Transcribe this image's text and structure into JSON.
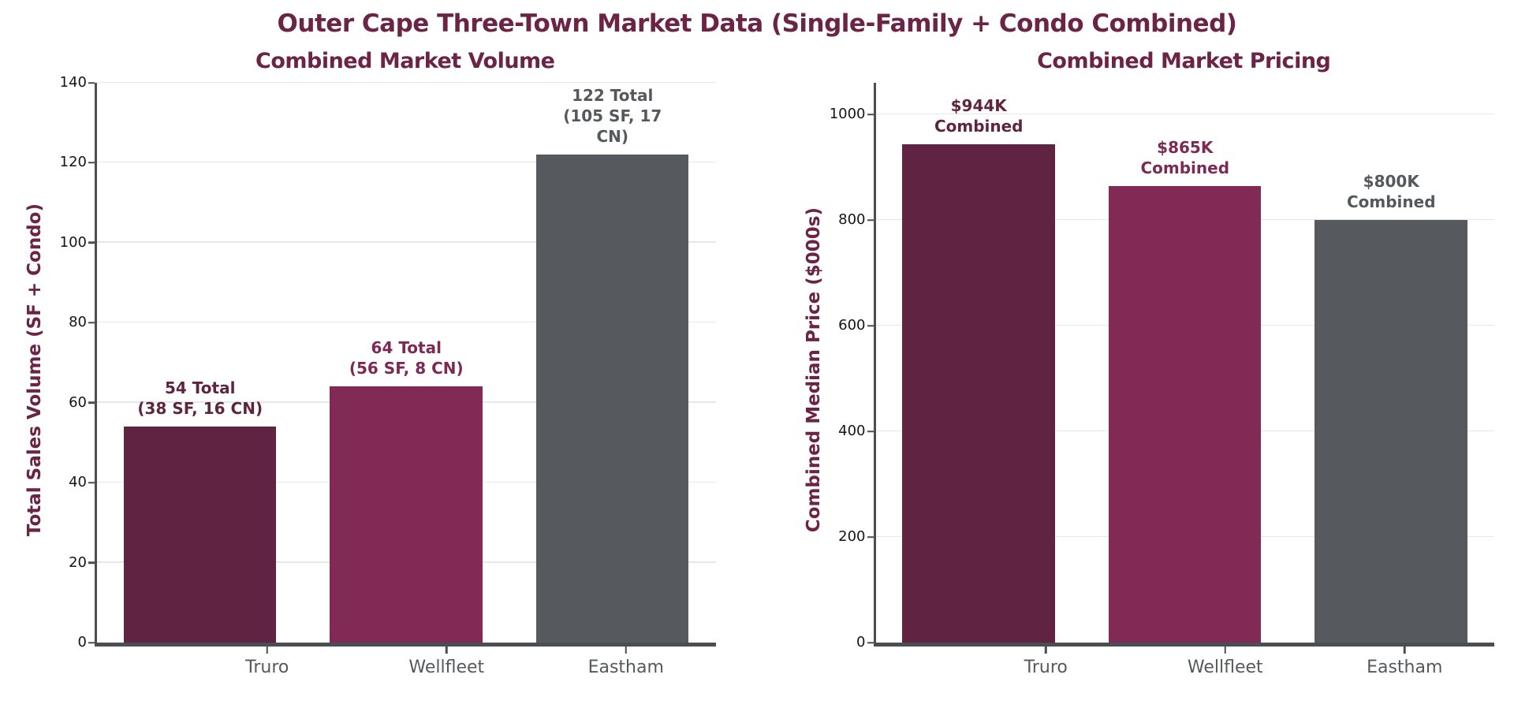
{
  "main_title": "Outer Cape Three-Town Market Data (Single-Family + Condo Combined)",
  "palette": {
    "title_maroon": "#6b2346",
    "axis_gray": "#4a4e52",
    "tick_label_gray": "#55595e",
    "gridline_gray": "#e7e7e7"
  },
  "chart_data": [
    {
      "type": "bar",
      "title": "Combined Market Volume",
      "xlabel": "",
      "ylabel": "Total Sales Volume (SF + Condo)",
      "categories": [
        "Truro",
        "Wellfleet",
        "Eastham"
      ],
      "values": [
        54,
        64,
        122
      ],
      "breakdown": [
        {
          "town": "Truro",
          "total": 54,
          "single_family": 38,
          "condo": 16
        },
        {
          "town": "Wellfleet",
          "total": 64,
          "single_family": 56,
          "condo": 8
        },
        {
          "town": "Eastham",
          "total": 122,
          "single_family": 105,
          "condo": 17
        }
      ],
      "annotations": [
        "54 Total\n(38 SF, 16 CN)",
        "64 Total\n(56 SF, 8 CN)",
        "122 Total\n(105 SF, 17 CN)"
      ],
      "annotation_colors": [
        "#5f2540",
        "#7c2a53",
        "#55595e"
      ],
      "bar_colors": [
        "#602442",
        "#822a56",
        "#56595d"
      ],
      "ylim": [
        0,
        140
      ],
      "yticks": [
        0,
        20,
        40,
        60,
        80,
        100,
        120,
        140
      ],
      "grid": true,
      "legend": "none"
    },
    {
      "type": "bar",
      "title": "Combined Market Pricing",
      "xlabel": "",
      "ylabel": "Combined Median Price ($000s)",
      "categories": [
        "Truro",
        "Wellfleet",
        "Eastham"
      ],
      "values": [
        944,
        865,
        800
      ],
      "annotations": [
        "$944K\nCombined",
        "$865K\nCombined",
        "$800K\nCombined"
      ],
      "annotation_colors": [
        "#5f2540",
        "#7c2a53",
        "#55595e"
      ],
      "bar_colors": [
        "#602442",
        "#822a56",
        "#56595d"
      ],
      "ylim": [
        0,
        1060
      ],
      "yticks": [
        0,
        200,
        400,
        600,
        800,
        1000
      ],
      "grid": true,
      "legend": "none"
    }
  ]
}
